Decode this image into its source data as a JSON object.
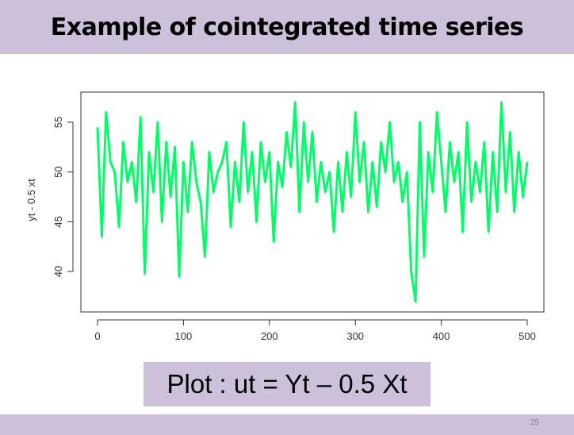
{
  "slide": {
    "title": "Example of cointegrated time series",
    "caption": "Plot : ut = Yt – 0.5 Xt",
    "page_number": "25"
  },
  "colors": {
    "band": "#cdc0da",
    "series": "#00ff66",
    "axis": "#333333"
  },
  "chart_data": {
    "type": "line",
    "title": "",
    "xlabel": "",
    "ylabel": "yt - 0.5 xt",
    "xlim": [
      0,
      500
    ],
    "ylim": [
      37,
      58
    ],
    "xticks": [
      0,
      100,
      200,
      300,
      400,
      500
    ],
    "yticks": [
      40,
      45,
      50,
      55
    ],
    "grid": false,
    "series": [
      {
        "name": "",
        "x": [
          0,
          5,
          10,
          15,
          20,
          25,
          30,
          35,
          40,
          45,
          50,
          55,
          60,
          65,
          70,
          75,
          80,
          85,
          90,
          95,
          100,
          105,
          110,
          115,
          120,
          125,
          130,
          135,
          140,
          145,
          150,
          155,
          160,
          165,
          170,
          175,
          180,
          185,
          190,
          195,
          200,
          205,
          210,
          215,
          220,
          225,
          230,
          235,
          240,
          245,
          250,
          255,
          260,
          265,
          270,
          275,
          280,
          285,
          290,
          295,
          300,
          305,
          310,
          315,
          320,
          325,
          330,
          335,
          340,
          345,
          350,
          355,
          360,
          365,
          370,
          375,
          380,
          385,
          390,
          395,
          400,
          405,
          410,
          415,
          420,
          425,
          430,
          435,
          440,
          445,
          450,
          455,
          460,
          465,
          470,
          475,
          480,
          485,
          490,
          495,
          500
        ],
        "y": [
          54.5,
          43.5,
          56,
          51,
          50,
          44.5,
          53,
          49,
          51,
          47,
          55.5,
          39.8,
          52,
          48,
          55,
          45,
          53,
          47.5,
          52.5,
          39.5,
          51,
          46,
          53,
          49,
          47,
          41.5,
          52,
          48,
          50,
          51,
          53,
          44.5,
          51,
          47,
          55,
          48,
          52,
          45,
          53,
          49,
          52,
          43,
          51,
          48.5,
          54,
          50.5,
          57,
          46,
          55,
          49,
          54,
          47,
          51,
          48,
          50,
          44,
          51,
          46,
          52,
          47.5,
          56,
          49,
          53,
          46,
          51,
          46.5,
          53,
          50,
          55,
          49,
          51,
          47,
          50,
          40,
          37,
          55,
          41.5,
          52,
          48,
          56,
          51,
          46,
          53,
          49,
          52,
          44,
          55,
          47,
          51,
          48,
          53,
          44,
          52,
          46,
          57,
          48,
          54,
          46,
          52,
          47.5,
          51
        ]
      }
    ]
  }
}
